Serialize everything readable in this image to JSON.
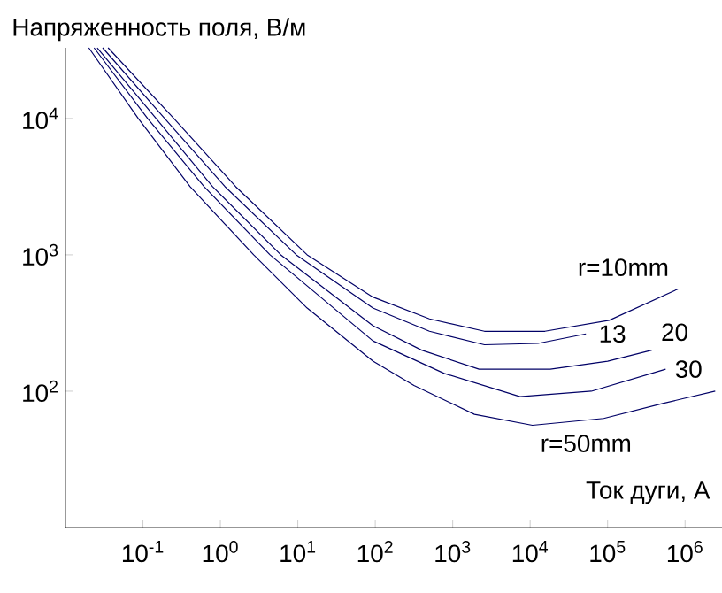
{
  "chart_data": {
    "type": "line",
    "xlabel": "Ток дуги, А",
    "ylabel": "Напряженность поля, В/м",
    "log": "xy",
    "grid": false,
    "legend": false,
    "xlim": [
      0.01,
      3000000
    ],
    "ylim": [
      10,
      33000
    ],
    "xticks": [
      {
        "value": 0.1,
        "label": "10$^{-1}$"
      },
      {
        "value": 1,
        "label": "10$^{0}$"
      },
      {
        "value": 10,
        "label": "10$^{1}$"
      },
      {
        "value": 100,
        "label": "10$^{2}$"
      },
      {
        "value": 1000,
        "label": "10$^{3}$"
      },
      {
        "value": 10000,
        "label": "10$^{4}$"
      },
      {
        "value": 100000,
        "label": "10$^{5}$"
      },
      {
        "value": 1000000,
        "label": "10$^{6}$"
      }
    ],
    "yticks": [
      {
        "value": 100,
        "label": "10$^{2}$"
      },
      {
        "value": 1000,
        "label": "10$^{3}$"
      },
      {
        "value": 10000,
        "label": "10$^{4}$"
      }
    ],
    "series": [
      {
        "name": "r=10mm",
        "color": "#000066",
        "x": [
          0.0355,
          0.251,
          1.58,
          13.2,
          93.3,
          501,
          2570,
          15500,
          105000,
          813000
        ],
        "values": [
          33000,
          10000,
          3160,
          1000,
          490,
          339,
          275,
          275,
          331,
          562
        ]
      },
      {
        "name": "13",
        "color": "#000066",
        "x": [
          0.0302,
          0.191,
          1.15,
          9.55,
          93.3,
          501,
          2570,
          12600,
          52500
        ],
        "values": [
          33000,
          10000,
          3160,
          1000,
          407,
          275,
          219,
          224,
          263
        ]
      },
      {
        "name": "20",
        "color": "#000066",
        "x": [
          0.0257,
          0.148,
          0.794,
          6.03,
          93.3,
          398,
          2190,
          18200,
          100000,
          372000
        ],
        "values": [
          33000,
          10000,
          3160,
          1000,
          302,
          200,
          145,
          145,
          166,
          200
        ]
      },
      {
        "name": "30",
        "color": "#000066",
        "x": [
          0.0234,
          0.115,
          0.617,
          4.37,
          93.3,
          776,
          7410,
          61700,
          562000
        ],
        "values": [
          33000,
          10000,
          3160,
          1000,
          234,
          135,
          91.2,
          100,
          145
        ]
      },
      {
        "name": "r=50mm",
        "color": "#000066",
        "x": [
          0.02,
          0.0871,
          0.407,
          2.69,
          13.2,
          93.3,
          316,
          1910,
          10700,
          89100,
          513000,
          2450000
        ],
        "values": [
          33000,
          10000,
          3160,
          1000,
          407,
          166,
          110,
          67.6,
          56.2,
          63.1,
          81.3,
          100
        ]
      }
    ]
  }
}
